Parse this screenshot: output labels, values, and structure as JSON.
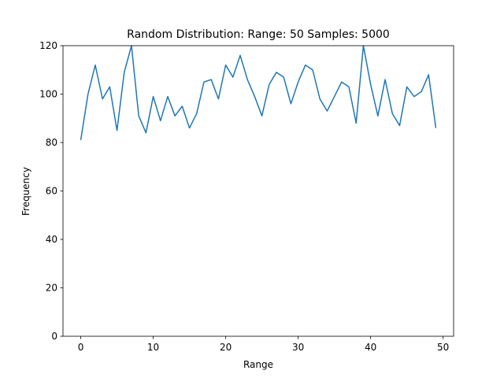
{
  "chart_data": {
    "type": "line",
    "title": "Random Distribution: Range: 50 Samples: 5000",
    "xlabel": "Range",
    "ylabel": "Frequency",
    "xlim": [
      -2.45,
      51.45
    ],
    "ylim": [
      0,
      120
    ],
    "x_ticks": [
      0,
      10,
      20,
      30,
      40,
      50
    ],
    "y_ticks": [
      0,
      20,
      40,
      60,
      80,
      100,
      120
    ],
    "grid": false,
    "line_color": "#1f77b4",
    "x": [
      0,
      1,
      2,
      3,
      4,
      5,
      6,
      7,
      8,
      9,
      10,
      11,
      12,
      13,
      14,
      15,
      16,
      17,
      18,
      19,
      20,
      21,
      22,
      23,
      24,
      25,
      26,
      27,
      28,
      29,
      30,
      31,
      32,
      33,
      34,
      35,
      36,
      37,
      38,
      39,
      40,
      41,
      42,
      43,
      44,
      45,
      46,
      47,
      48,
      49
    ],
    "values": [
      81,
      100,
      112,
      98,
      103,
      85,
      109,
      120,
      91,
      84,
      99,
      89,
      99,
      91,
      95,
      86,
      92,
      105,
      106,
      98,
      112,
      107,
      116,
      106,
      99,
      91,
      104,
      109,
      107,
      96,
      105,
      112,
      110,
      98,
      93,
      99,
      105,
      103,
      88,
      120,
      104,
      91,
      106,
      92,
      87,
      103,
      99,
      101,
      108,
      86
    ]
  }
}
